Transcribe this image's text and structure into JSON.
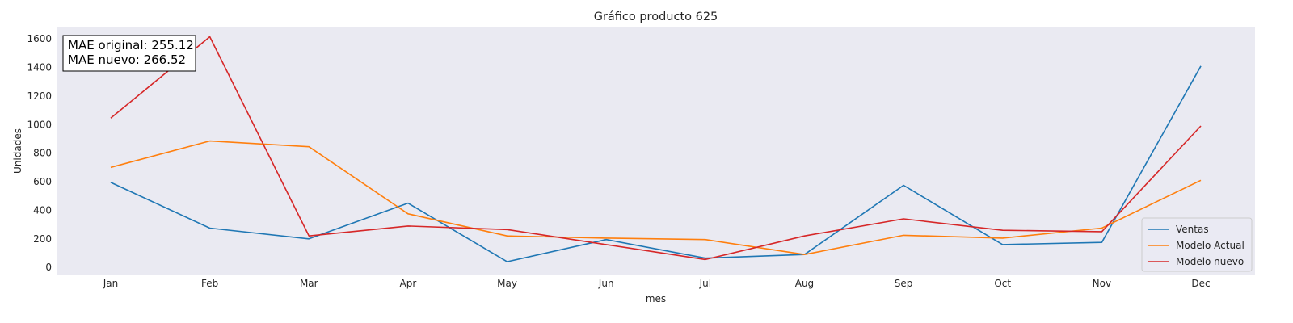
{
  "chart_data": {
    "type": "line",
    "title": "Gráfico producto 625",
    "xlabel": "mes",
    "ylabel": "Unidades",
    "categories": [
      "Jan",
      "Feb",
      "Mar",
      "Apr",
      "May",
      "Jun",
      "Jul",
      "Aug",
      "Sep",
      "Oct",
      "Nov",
      "Dec"
    ],
    "y_ticks": [
      0,
      200,
      400,
      600,
      800,
      1000,
      1200,
      1400,
      1600
    ],
    "ylim": [
      -50,
      1680
    ],
    "grid": false,
    "legend_position": "lower right",
    "series": [
      {
        "name": "Ventas",
        "color": "#1f77b4",
        "values": [
          595,
          275,
          200,
          450,
          40,
          195,
          65,
          90,
          575,
          160,
          175,
          1410
        ]
      },
      {
        "name": "Modelo Actual",
        "color": "#ff7f0e",
        "values": [
          700,
          885,
          845,
          375,
          220,
          205,
          195,
          90,
          225,
          205,
          275,
          610
        ]
      },
      {
        "name": "Modelo nuevo",
        "color": "#d62728",
        "values": [
          1045,
          1615,
          220,
          290,
          265,
          160,
          55,
          220,
          340,
          260,
          250,
          990
        ]
      }
    ],
    "annotation": [
      "MAE original: 255.12",
      "MAE nuevo: 266.52"
    ],
    "background_color": "#eaeaf2"
  }
}
